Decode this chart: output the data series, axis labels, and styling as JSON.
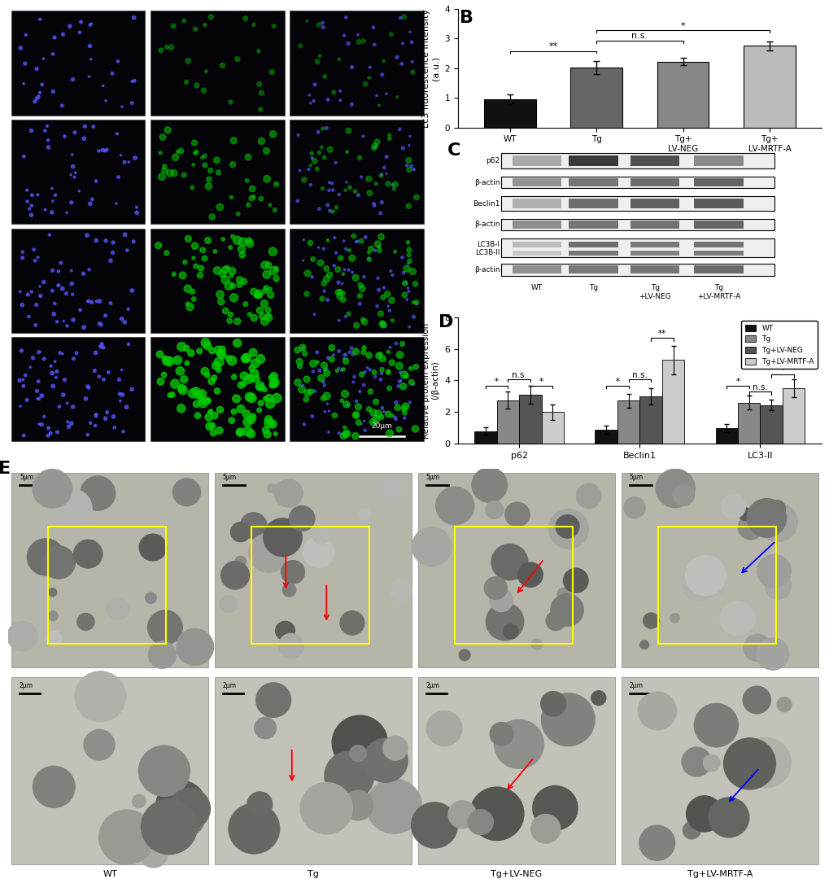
{
  "panel_B": {
    "categories": [
      "WT",
      "Tg",
      "Tg+\nLV-NEG",
      "Tg+\nLV-MRTF-A"
    ],
    "values": [
      0.95,
      2.02,
      2.22,
      2.75
    ],
    "errors": [
      0.15,
      0.22,
      0.12,
      0.15
    ],
    "colors": [
      "#111111",
      "#666666",
      "#888888",
      "#bbbbbb"
    ],
    "ylabel": "Lc3 fluorescence intensity\n(a.u.)",
    "ylim": [
      0,
      4
    ],
    "yticks": [
      0,
      1,
      2,
      3,
      4
    ]
  },
  "panel_D": {
    "groups": [
      "p62",
      "Beclin1",
      "LC3-II"
    ],
    "subgroups": [
      "WT",
      "Tg",
      "Tg+LV-NEG",
      "Tg+LV-MRTF-A"
    ],
    "values": [
      [
        0.8,
        2.75,
        3.1,
        2.0
      ],
      [
        0.9,
        2.72,
        3.0,
        5.3
      ],
      [
        1.0,
        2.6,
        2.45,
        3.5
      ]
    ],
    "errors": [
      [
        0.25,
        0.55,
        0.55,
        0.5
      ],
      [
        0.25,
        0.45,
        0.5,
        0.9
      ],
      [
        0.25,
        0.45,
        0.35,
        0.55
      ]
    ],
    "colors": [
      "#111111",
      "#888888",
      "#555555",
      "#cccccc"
    ],
    "ylabel": "Relative protein expression\n(/β-actin)",
    "ylim": [
      0,
      8
    ],
    "yticks": [
      0,
      2,
      4,
      6,
      8
    ],
    "legend_labels": [
      "WT",
      "Tg",
      "Tg+LV-NEG",
      "Tg+LV-MRTF-A"
    ]
  },
  "background_color": "#ffffff"
}
